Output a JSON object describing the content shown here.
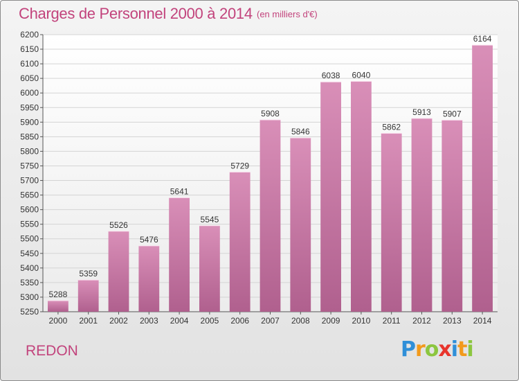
{
  "header": {
    "title": "Charges de Personnel 2000 à 2014",
    "subtitle": "(en milliers d'€)"
  },
  "footer": {
    "city": "REDON",
    "logo_letters": [
      "P",
      "r",
      "o",
      "x",
      "i",
      "t",
      "i"
    ],
    "logo_colors": [
      "#2f8fd8",
      "#f29a1c",
      "#8cc63f",
      "#e8342c",
      "#2f8fd8",
      "#f29a1c",
      "#8cc63f"
    ]
  },
  "chart_data": {
    "type": "bar",
    "title": "Charges de Personnel 2000 à 2014",
    "subtitle": "(en milliers d'€)",
    "categories": [
      "2000",
      "2001",
      "2002",
      "2003",
      "2004",
      "2005",
      "2006",
      "2007",
      "2008",
      "2009",
      "2010",
      "2011",
      "2012",
      "2013",
      "2014"
    ],
    "values": [
      5288,
      5359,
      5526,
      5476,
      5641,
      5545,
      5729,
      5908,
      5846,
      6038,
      6040,
      5862,
      5913,
      5907,
      6164
    ],
    "ylim": [
      5250,
      6200
    ],
    "ytick_step": 50,
    "grid": true,
    "bar_color": "#d98fb8",
    "bar_color_dark": "#b0608e"
  }
}
